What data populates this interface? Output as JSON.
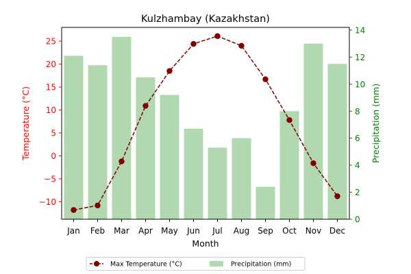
{
  "chart_data": {
    "type": "bar+line",
    "title": "Kulzhambay (Kazakhstan)",
    "xlabel": "Month",
    "categories": [
      "Jan",
      "Feb",
      "Mar",
      "Apr",
      "May",
      "Jun",
      "Jul",
      "Aug",
      "Sep",
      "Oct",
      "Nov",
      "Dec"
    ],
    "temperature": {
      "name": "Max Temperature (°C)",
      "axis_label": "Temperature (°C)",
      "color": "#800000",
      "axis_color": "#ff0000",
      "ylim": [
        -13.8,
        28.0
      ],
      "ticks": [
        -10,
        -5,
        0,
        5,
        10,
        15,
        20,
        25
      ],
      "tick_labels": [
        "−10",
        "−5",
        "0",
        "5",
        "10",
        "15",
        "20",
        "25"
      ],
      "values": [
        -11.8,
        -10.8,
        -1.2,
        10.9,
        18.5,
        24.4,
        26.1,
        24.0,
        16.7,
        7.8,
        -1.6,
        -8.8
      ]
    },
    "precipitation": {
      "name": "Precipitation (mm)",
      "axis_label": "Precipitation (mm)",
      "color": "#b2d8b2",
      "axis_color": "#008000",
      "ylim": [
        0,
        14.2
      ],
      "ticks": [
        0,
        2,
        4,
        6,
        8,
        10,
        12,
        14
      ],
      "tick_labels": [
        "0",
        "2",
        "4",
        "6",
        "8",
        "10",
        "12",
        "14"
      ],
      "values": [
        12.1,
        11.4,
        13.5,
        10.5,
        9.2,
        6.7,
        5.3,
        6.0,
        2.4,
        8.0,
        13.0,
        11.5
      ]
    },
    "legend_position": "bottom-center"
  }
}
